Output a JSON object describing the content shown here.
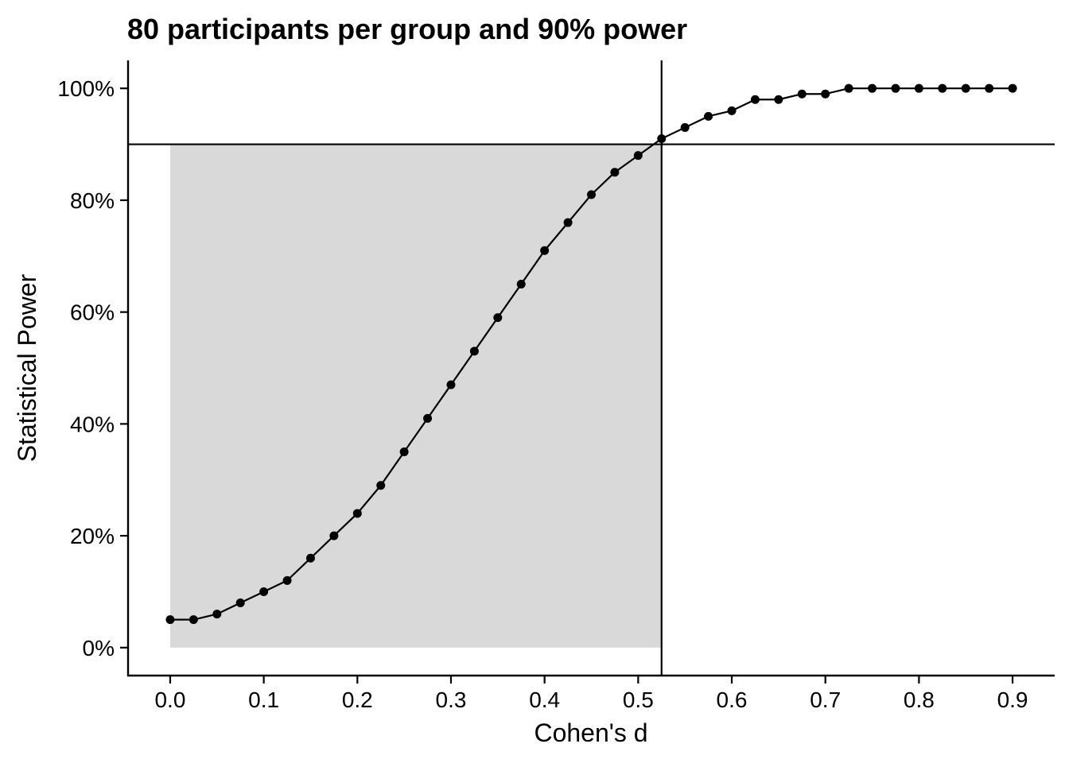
{
  "chart_data": {
    "type": "line",
    "title": "80 participants per group and 90% power",
    "xlabel": "Cohen's d",
    "ylabel": "Statistical Power",
    "xlim": [
      -0.045,
      0.945
    ],
    "ylim": [
      -5,
      105
    ],
    "x_ticks": [
      0.0,
      0.1,
      0.2,
      0.3,
      0.4,
      0.5,
      0.6,
      0.7,
      0.8,
      0.9
    ],
    "x_tick_labels": [
      "0.0",
      "0.1",
      "0.2",
      "0.3",
      "0.4",
      "0.5",
      "0.6",
      "0.7",
      "0.8",
      "0.9"
    ],
    "y_ticks": [
      0,
      20,
      40,
      60,
      80,
      100
    ],
    "y_tick_labels": [
      "0%",
      "20%",
      "40%",
      "60%",
      "80%",
      "100%"
    ],
    "reference_lines": {
      "power_threshold": 90,
      "required_effect_size": 0.525
    },
    "shaded_region": {
      "x_range": [
        0.0,
        0.525
      ],
      "y_range": [
        0,
        90
      ],
      "color": "#d9d9d9"
    },
    "series": [
      {
        "x": [
          0.0,
          0.025,
          0.05,
          0.075,
          0.1,
          0.125,
          0.15,
          0.175,
          0.2,
          0.225,
          0.25,
          0.275,
          0.3,
          0.325,
          0.35,
          0.375,
          0.4,
          0.425,
          0.45,
          0.475,
          0.5,
          0.525,
          0.55,
          0.575,
          0.6,
          0.625,
          0.65,
          0.675,
          0.7,
          0.725,
          0.75,
          0.775,
          0.8,
          0.825,
          0.85,
          0.875,
          0.9
        ],
        "y": [
          5,
          5,
          6,
          8,
          10,
          12,
          16,
          20,
          24,
          29,
          35,
          41,
          47,
          53,
          59,
          65,
          71,
          76,
          81,
          85,
          88,
          91,
          93,
          95,
          96,
          98,
          98,
          99,
          99,
          100,
          100,
          100,
          100,
          100,
          100,
          100,
          100
        ],
        "color": "#000000"
      }
    ],
    "grid": false
  }
}
